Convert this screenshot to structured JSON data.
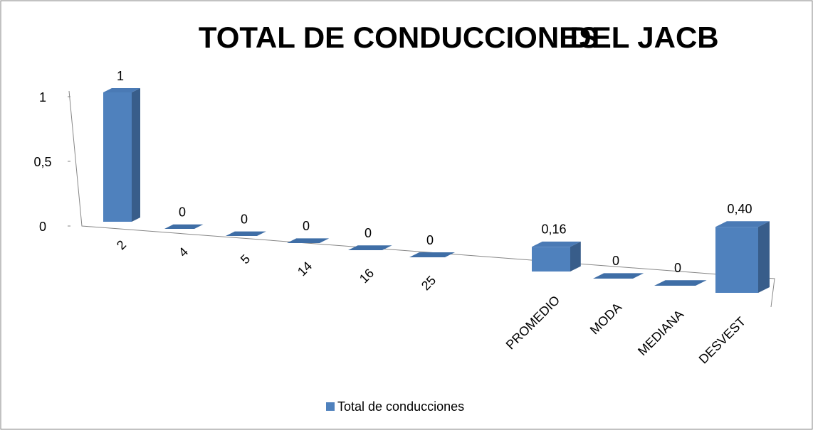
{
  "chart_data": {
    "type": "bar3d",
    "title": "TOTAL DE  CONDUCCIONES",
    "subtitle": "DEL JACB",
    "categories": [
      "2",
      "4",
      "5",
      "14",
      "16",
      "25",
      null,
      "PROMEDIO",
      "MODA",
      "MEDIANA",
      "DESVEST"
    ],
    "series": [
      {
        "name": "Total de conducciones",
        "color": "#4f81bd",
        "values": [
          1,
          0,
          0,
          0,
          0,
          0,
          null,
          0.16,
          0,
          0,
          0.4
        ],
        "value_labels": [
          "1",
          "0",
          "0",
          "0",
          "0",
          "0",
          null,
          "0,16",
          "0",
          "0",
          "0,40"
        ]
      }
    ],
    "ylim": [
      0,
      1
    ],
    "yticks": [
      0,
      {
        "value": 0.5,
        "label": "0,5"
      },
      1
    ],
    "legend": "bottom"
  }
}
